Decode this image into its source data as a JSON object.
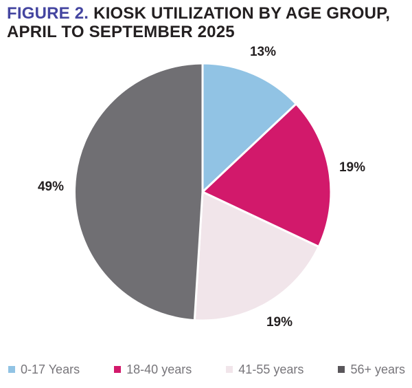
{
  "title": {
    "figure_label": "FIGURE 2.",
    "heading_line1": "KIOSK UTILIZATION BY AGE GROUP,",
    "heading_line2": "APRIL TO SEPTEMBER 2025"
  },
  "colors": {
    "figure_label": "#4445A0",
    "heading_text": "#231F20",
    "slice_label_text": "#231F20",
    "legend_text": "#77757A",
    "background": "#FFFFFF",
    "slice_separator": "#FFFFFF"
  },
  "chart_data": {
    "type": "pie",
    "title": "FIGURE 2. KIOSK UTILIZATION BY AGE GROUP, APRIL TO SEPTEMBER 2025",
    "categories": [
      "0-17 Years",
      "18-40 years",
      "41-55 years",
      "56+ years"
    ],
    "values": [
      13,
      19,
      19,
      49
    ],
    "value_labels": [
      "13%",
      "19%",
      "19%",
      "49%"
    ],
    "colors": [
      "#91C3E4",
      "#D2196B",
      "#F1E5EA",
      "#706F73"
    ],
    "start_angle_deg": 0,
    "direction": "clockwise",
    "legend_position": "bottom"
  },
  "legend": {
    "items": [
      {
        "label": "0-17 Years",
        "swatch_color": "#91C3E4"
      },
      {
        "label": "18-40 years",
        "swatch_color": "#D2196B"
      },
      {
        "label": "41-55 years",
        "swatch_color": "#F1E5EA"
      },
      {
        "label": "56+ years",
        "swatch_color": "#59565A"
      }
    ]
  }
}
